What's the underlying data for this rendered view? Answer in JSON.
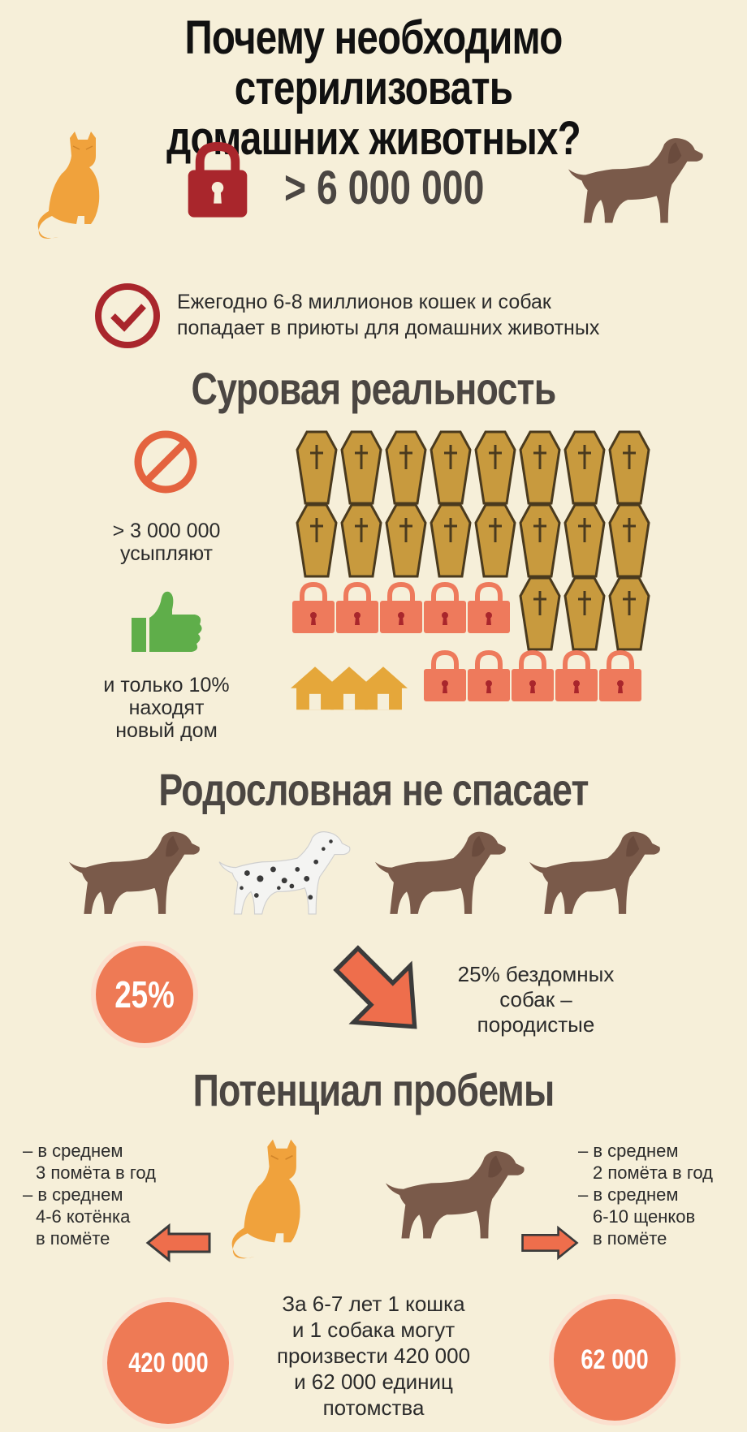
{
  "header": {
    "title_line1": "Почему необходимо стерилизовать",
    "title_line2": "домашних животных?"
  },
  "top": {
    "count": "> 6 000 000",
    "check_text_line1": "Ежегодно 6-8 миллионов кошек и собак",
    "check_text_line2": "попадает в приюты для домашних животных"
  },
  "reality": {
    "heading": "Суровая реальность",
    "euthanized_line1": "> 3 000 000",
    "euthanized_line2": "усыпляют",
    "home_line1": "и только 10%",
    "home_line2": "находят",
    "home_line3": "новый дом"
  },
  "pedigree": {
    "heading": "Родословная не спасает",
    "percent": "25%",
    "text_line1": "25% бездомных",
    "text_line2": "собак –",
    "text_line3": "породистые"
  },
  "potential": {
    "heading": "Потенциал пробемы",
    "cat_lines": [
      "– в среднем",
      "3 помёта в год",
      "– в среднем",
      "4-6 котёнка",
      "в помёте"
    ],
    "dog_lines": [
      "– в среднем",
      "2 помёта в год",
      "– в среднем",
      "6-10 щенков",
      "в помёте"
    ],
    "cat_total": "420 000",
    "dog_total": "62 000",
    "summary_lines": [
      "За 6-7 лет 1 кошка",
      "и 1 собака могут",
      "произвести 420 000",
      "и 62 000 единиц",
      "потомства"
    ]
  },
  "colors": {
    "background": "#f6efd9",
    "cat": "#f0a23c",
    "dog": "#7a5a4a",
    "lock_dark": "#a9262c",
    "lock_light": "#ee7a5c",
    "coffin": "#c89a3e",
    "house": "#e5a73a",
    "thumb": "#5fae4a",
    "circle": "#ee7a55"
  },
  "icons": [
    "cat-icon",
    "dog-icon",
    "lock-icon",
    "check-icon",
    "no-icon",
    "coffin-icon",
    "thumb-up-icon",
    "house-icon",
    "dalmatian-icon",
    "arrow-icon"
  ]
}
